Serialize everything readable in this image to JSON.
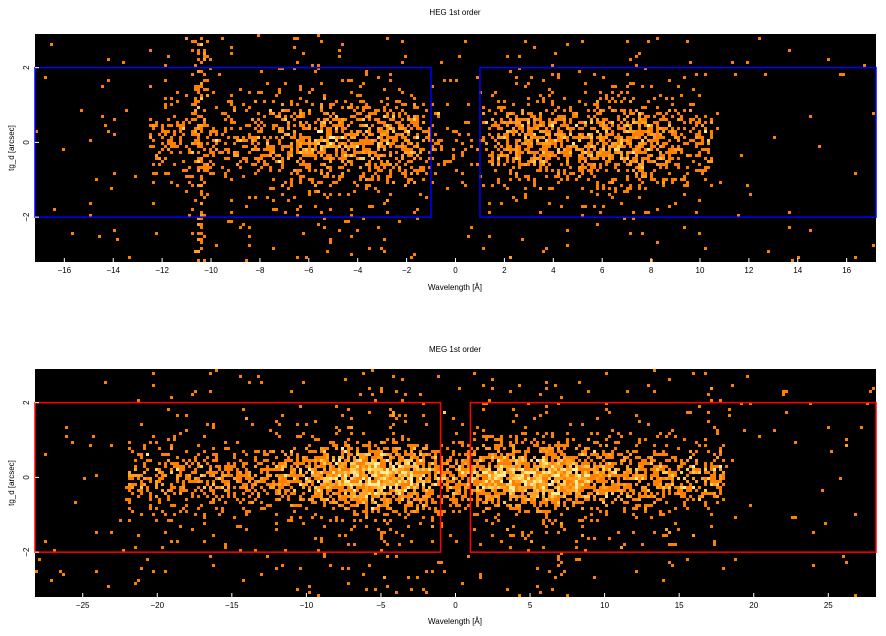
{
  "chart_data": [
    {
      "type": "heatmap",
      "title": "HEG 1st order",
      "xlabel": "Wavelength [Å]",
      "ylabel": "tg_d [arcsec]",
      "xlim": [
        -17.2,
        17.2
      ],
      "ylim": [
        -3.2,
        2.9
      ],
      "x_ticks": [
        -16,
        -14,
        -12,
        -10,
        -8,
        -6,
        -4,
        -2,
        0,
        2,
        4,
        6,
        8,
        10,
        12,
        14,
        16
      ],
      "y_ticks": [
        -2,
        0,
        2
      ],
      "background": "#000000",
      "colormap": [
        "#ff7f00",
        "#ffa020",
        "#ffcc55",
        "#ffee99"
      ],
      "extraction_region_color": "#0000ff",
      "extraction_regions": [
        {
          "x": [
            -17.2,
            -1.0
          ],
          "y": [
            -2.0,
            2.0
          ]
        },
        {
          "x": [
            1.0,
            17.2
          ],
          "y": [
            -2.0,
            2.0
          ]
        }
      ],
      "event_density": {
        "description": "binned event counts, densest near y=0",
        "minus_order_x_range": [
          -12.5,
          -1.5
        ],
        "plus_order_x_range": [
          1.5,
          10.5
        ],
        "peaks_x": [
          -6.0,
          -2.8,
          3.0,
          7.0
        ],
        "vertical_streak_x": -10.4,
        "core_half_width_arcsec": 0.8
      }
    },
    {
      "type": "heatmap",
      "title": "MEG 1st order",
      "xlabel": "Wavelength [Å]",
      "ylabel": "tg_d [arcsec]",
      "xlim": [
        -28.2,
        28.2
      ],
      "ylim": [
        -3.2,
        2.9
      ],
      "x_ticks": [
        -25,
        -20,
        -15,
        -10,
        -5,
        0,
        5,
        10,
        15,
        20,
        25
      ],
      "y_ticks": [
        -2,
        0,
        2
      ],
      "background": "#000000",
      "colormap": [
        "#ff7f00",
        "#ffa020",
        "#ffcc55",
        "#ffee99"
      ],
      "extraction_region_color": "#ff0000",
      "extraction_regions": [
        {
          "x": [
            -28.2,
            -1.0
          ],
          "y": [
            -2.0,
            2.0
          ]
        },
        {
          "x": [
            1.0,
            28.2
          ],
          "y": [
            -2.0,
            2.0
          ]
        }
      ],
      "event_density": {
        "description": "binned event counts, densest near y=0",
        "minus_order_x_range": [
          -22.0,
          -2.0
        ],
        "plus_order_x_range": [
          2.0,
          18.0
        ],
        "peaks_x": [
          -7.0,
          -3.5,
          2.5,
          7.5
        ],
        "core_half_width_arcsec": 0.6
      }
    }
  ]
}
